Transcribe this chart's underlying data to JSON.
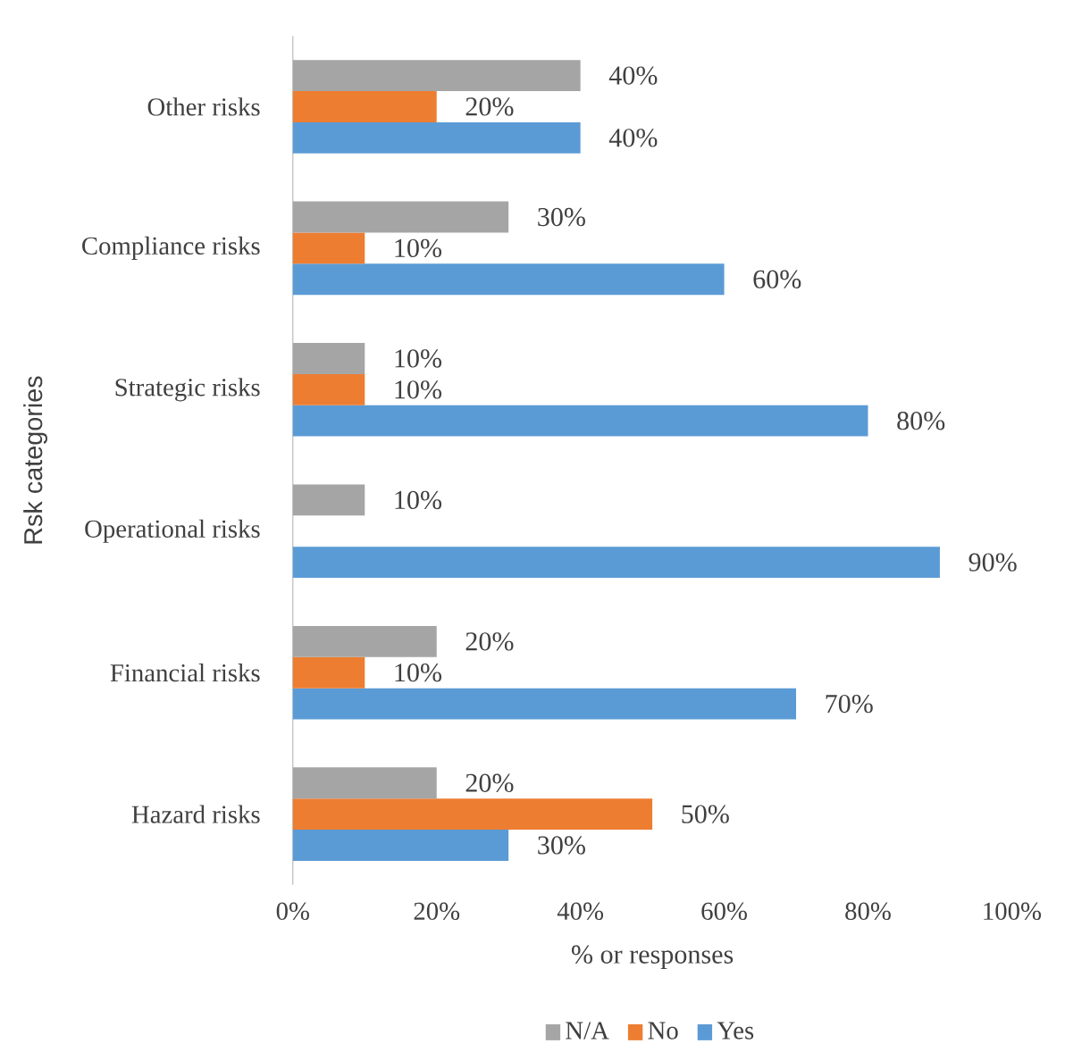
{
  "chart_data": {
    "type": "bar",
    "orientation": "horizontal",
    "categories": [
      "Other risks",
      "Compliance risks",
      "Strategic risks",
      "Operational risks",
      "Financial risks",
      "Hazard risks"
    ],
    "series": [
      {
        "name": "N/A",
        "color": "#a5a5a5",
        "values": [
          40,
          30,
          10,
          10,
          20,
          20
        ],
        "value_labels": [
          "40%",
          "30%",
          "10%",
          "10%",
          "20%",
          "20%"
        ]
      },
      {
        "name": "No",
        "color": "#ed7d31",
        "values": [
          20,
          10,
          10,
          0,
          10,
          50
        ],
        "value_labels": [
          "20%",
          "10%",
          "10%",
          null,
          "10%",
          "50%"
        ]
      },
      {
        "name": "Yes",
        "color": "#5b9bd5",
        "values": [
          40,
          60,
          80,
          90,
          70,
          30
        ],
        "value_labels": [
          "40%",
          "60%",
          "80%",
          "90%",
          "70%",
          "30%"
        ]
      }
    ],
    "xlim": [
      0,
      100
    ],
    "xticks": [
      {
        "value": 0,
        "label": "0%"
      },
      {
        "value": 20,
        "label": "20%"
      },
      {
        "value": 40,
        "label": "40%"
      },
      {
        "value": 60,
        "label": "60%"
      },
      {
        "value": 80,
        "label": "80%"
      },
      {
        "value": 100,
        "label": "100%"
      }
    ],
    "xlabel": "% or responses",
    "ylabel": "Rsk categories",
    "grid": false,
    "legend": "bottom"
  }
}
